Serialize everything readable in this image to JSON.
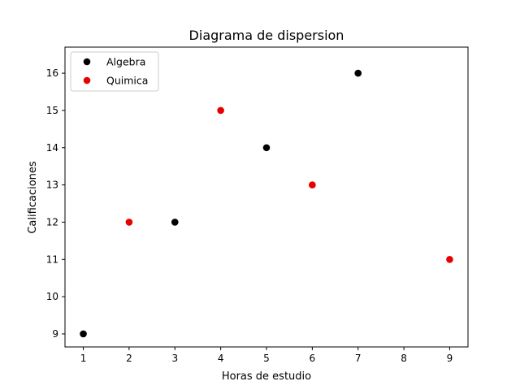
{
  "chart_data": {
    "type": "scatter",
    "title": "Diagrama de dispersion",
    "xlabel": "Horas de estudio",
    "ylabel": "Calificaciones",
    "xlim": [
      0.6,
      9.4
    ],
    "ylim": [
      8.65,
      16.7
    ],
    "xticks": [
      1,
      2,
      3,
      4,
      5,
      6,
      7,
      8,
      9
    ],
    "yticks": [
      9,
      10,
      11,
      12,
      13,
      14,
      15,
      16
    ],
    "grid": false,
    "legend_position": "top-left",
    "series": [
      {
        "name": "Algebra",
        "color": "#000000",
        "points": [
          {
            "x": 1,
            "y": 9
          },
          {
            "x": 3,
            "y": 12
          },
          {
            "x": 5,
            "y": 14
          },
          {
            "x": 7,
            "y": 16
          }
        ]
      },
      {
        "name": "Quimica",
        "color": "#e60000",
        "points": [
          {
            "x": 2,
            "y": 12
          },
          {
            "x": 4,
            "y": 15
          },
          {
            "x": 6,
            "y": 13
          },
          {
            "x": 9,
            "y": 11
          }
        ]
      }
    ]
  }
}
